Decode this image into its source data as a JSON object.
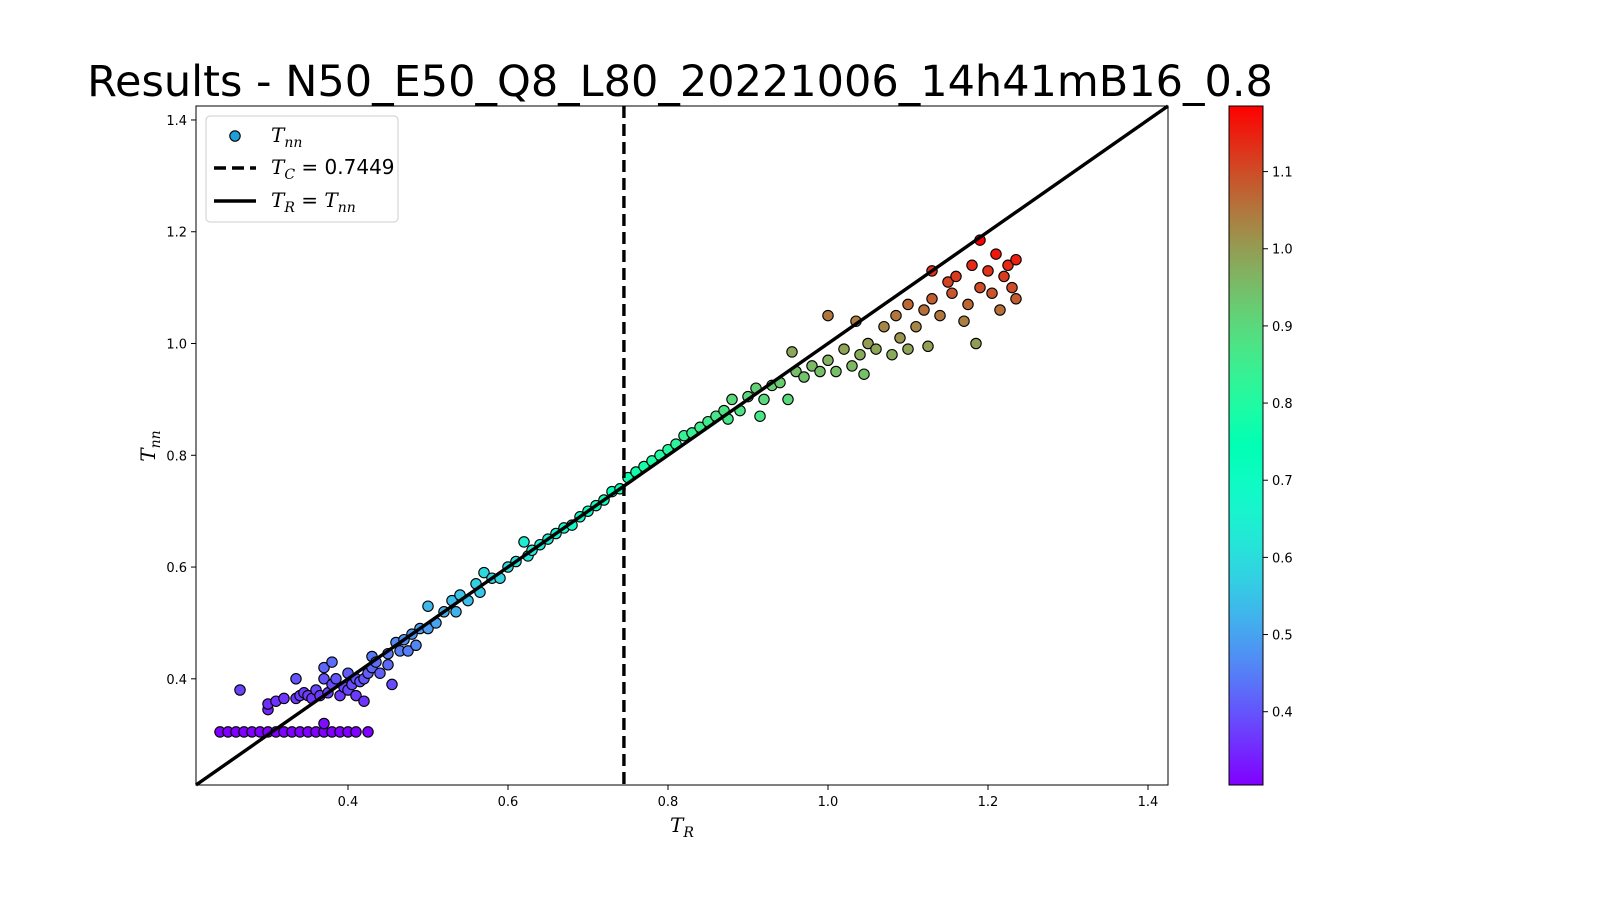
{
  "chart_data": {
    "type": "scatter",
    "title": "Results - N50_E50_Q8_L80_20221006_14h41mB16_0.8",
    "xlabel": {
      "main": "T",
      "sub": "R"
    },
    "ylabel": {
      "main": "T",
      "sub": "nn"
    },
    "xlim": [
      0.21,
      1.425
    ],
    "ylim": [
      0.21,
      1.425
    ],
    "xticks": [
      0.4,
      0.6,
      0.8,
      1.0,
      1.2,
      1.4
    ],
    "xtick_labels": [
      "0.4",
      "0.6",
      "0.8",
      "1.0",
      "1.2",
      "1.4"
    ],
    "yticks": [
      0.4,
      0.6,
      0.8,
      1.0,
      1.2,
      1.4
    ],
    "ytick_labels": [
      "0.4",
      "0.6",
      "0.8",
      "1.0",
      "1.2",
      "1.4"
    ],
    "grid": false,
    "legend": {
      "placement": "upper-left",
      "entries": [
        {
          "kind": "marker",
          "main": "T",
          "sub": "nn",
          "color": "#1f9ed8"
        },
        {
          "kind": "dashed",
          "main": "T",
          "sub": "C",
          "rest": " = 0.7449"
        },
        {
          "kind": "solid",
          "main": "T",
          "sub": "R",
          "mid": " = ",
          "main2": "T",
          "sub2": "nn"
        }
      ]
    },
    "vline": {
      "x": 0.7449,
      "style": "dashed",
      "color": "#000000"
    },
    "diagonal": {
      "label": "T_R = T_nn",
      "color": "#000000"
    },
    "colorbar": {
      "cmap": "rainbow",
      "range": [
        0.305,
        1.185
      ],
      "ticks": [
        0.4,
        0.5,
        0.6,
        0.7,
        0.8,
        0.9,
        1.0,
        1.1
      ],
      "tick_labels": [
        "0.4",
        "0.5",
        "0.6",
        "0.7",
        "0.8",
        "0.9",
        "1.0",
        "1.1"
      ]
    },
    "series": [
      {
        "points": [
          [
            0.24,
            0.305
          ],
          [
            0.25,
            0.305
          ],
          [
            0.26,
            0.305
          ],
          [
            0.27,
            0.305
          ],
          [
            0.28,
            0.305
          ],
          [
            0.29,
            0.305
          ],
          [
            0.3,
            0.305
          ],
          [
            0.31,
            0.305
          ],
          [
            0.32,
            0.305
          ],
          [
            0.33,
            0.305
          ],
          [
            0.34,
            0.305
          ],
          [
            0.35,
            0.305
          ],
          [
            0.36,
            0.305
          ],
          [
            0.37,
            0.305
          ],
          [
            0.38,
            0.305
          ],
          [
            0.39,
            0.305
          ],
          [
            0.4,
            0.305
          ],
          [
            0.41,
            0.305
          ],
          [
            0.425,
            0.305
          ],
          [
            0.265,
            0.38
          ],
          [
            0.3,
            0.345
          ],
          [
            0.3,
            0.355
          ],
          [
            0.31,
            0.36
          ],
          [
            0.32,
            0.365
          ],
          [
            0.335,
            0.4
          ],
          [
            0.335,
            0.365
          ],
          [
            0.34,
            0.37
          ],
          [
            0.345,
            0.375
          ],
          [
            0.35,
            0.37
          ],
          [
            0.355,
            0.365
          ],
          [
            0.36,
            0.38
          ],
          [
            0.365,
            0.37
          ],
          [
            0.37,
            0.32
          ],
          [
            0.37,
            0.4
          ],
          [
            0.37,
            0.42
          ],
          [
            0.375,
            0.375
          ],
          [
            0.38,
            0.43
          ],
          [
            0.38,
            0.39
          ],
          [
            0.385,
            0.4
          ],
          [
            0.39,
            0.37
          ],
          [
            0.395,
            0.385
          ],
          [
            0.4,
            0.38
          ],
          [
            0.4,
            0.41
          ],
          [
            0.405,
            0.39
          ],
          [
            0.41,
            0.4
          ],
          [
            0.41,
            0.37
          ],
          [
            0.415,
            0.395
          ],
          [
            0.42,
            0.36
          ],
          [
            0.42,
            0.4
          ],
          [
            0.425,
            0.41
          ],
          [
            0.43,
            0.42
          ],
          [
            0.43,
            0.44
          ],
          [
            0.435,
            0.43
          ],
          [
            0.44,
            0.41
          ],
          [
            0.45,
            0.445
          ],
          [
            0.45,
            0.425
          ],
          [
            0.455,
            0.39
          ],
          [
            0.46,
            0.465
          ],
          [
            0.465,
            0.45
          ],
          [
            0.47,
            0.47
          ],
          [
            0.475,
            0.45
          ],
          [
            0.48,
            0.48
          ],
          [
            0.485,
            0.46
          ],
          [
            0.49,
            0.49
          ],
          [
            0.5,
            0.53
          ],
          [
            0.5,
            0.49
          ],
          [
            0.51,
            0.5
          ],
          [
            0.52,
            0.52
          ],
          [
            0.53,
            0.54
          ],
          [
            0.535,
            0.52
          ],
          [
            0.54,
            0.55
          ],
          [
            0.55,
            0.54
          ],
          [
            0.56,
            0.57
          ],
          [
            0.565,
            0.555
          ],
          [
            0.57,
            0.59
          ],
          [
            0.58,
            0.58
          ],
          [
            0.59,
            0.58
          ],
          [
            0.6,
            0.6
          ],
          [
            0.61,
            0.61
          ],
          [
            0.62,
            0.645
          ],
          [
            0.625,
            0.62
          ],
          [
            0.63,
            0.63
          ],
          [
            0.64,
            0.64
          ],
          [
            0.65,
            0.65
          ],
          [
            0.66,
            0.66
          ],
          [
            0.67,
            0.67
          ],
          [
            0.68,
            0.675
          ],
          [
            0.69,
            0.69
          ],
          [
            0.7,
            0.7
          ],
          [
            0.71,
            0.71
          ],
          [
            0.72,
            0.72
          ],
          [
            0.73,
            0.735
          ],
          [
            0.74,
            0.74
          ],
          [
            0.75,
            0.76
          ],
          [
            0.76,
            0.77
          ],
          [
            0.77,
            0.78
          ],
          [
            0.78,
            0.79
          ],
          [
            0.79,
            0.8
          ],
          [
            0.8,
            0.81
          ],
          [
            0.81,
            0.82
          ],
          [
            0.82,
            0.835
          ],
          [
            0.83,
            0.84
          ],
          [
            0.84,
            0.85
          ],
          [
            0.85,
            0.86
          ],
          [
            0.86,
            0.87
          ],
          [
            0.87,
            0.88
          ],
          [
            0.875,
            0.865
          ],
          [
            0.88,
            0.9
          ],
          [
            0.89,
            0.88
          ],
          [
            0.9,
            0.905
          ],
          [
            0.91,
            0.92
          ],
          [
            0.915,
            0.87
          ],
          [
            0.92,
            0.9
          ],
          [
            0.93,
            0.925
          ],
          [
            0.94,
            0.93
          ],
          [
            0.95,
            0.9
          ],
          [
            0.955,
            0.985
          ],
          [
            0.96,
            0.95
          ],
          [
            0.97,
            0.94
          ],
          [
            0.98,
            0.96
          ],
          [
            0.99,
            0.95
          ],
          [
            1.0,
            1.05
          ],
          [
            1.0,
            0.97
          ],
          [
            1.01,
            0.95
          ],
          [
            1.02,
            0.99
          ],
          [
            1.03,
            0.96
          ],
          [
            1.035,
            1.04
          ],
          [
            1.04,
            0.98
          ],
          [
            1.045,
            0.945
          ],
          [
            1.05,
            1.0
          ],
          [
            1.06,
            0.99
          ],
          [
            1.07,
            1.03
          ],
          [
            1.08,
            0.98
          ],
          [
            1.085,
            1.05
          ],
          [
            1.09,
            1.01
          ],
          [
            1.1,
            1.07
          ],
          [
            1.1,
            0.99
          ],
          [
            1.11,
            1.03
          ],
          [
            1.12,
            1.06
          ],
          [
            1.125,
            0.995
          ],
          [
            1.13,
            1.13
          ],
          [
            1.13,
            1.08
          ],
          [
            1.14,
            1.05
          ],
          [
            1.15,
            1.11
          ],
          [
            1.155,
            1.09
          ],
          [
            1.16,
            1.12
          ],
          [
            1.17,
            1.04
          ],
          [
            1.175,
            1.07
          ],
          [
            1.18,
            1.14
          ],
          [
            1.185,
            1.0
          ],
          [
            1.19,
            1.1
          ],
          [
            1.19,
            1.185
          ],
          [
            1.2,
            1.13
          ],
          [
            1.205,
            1.09
          ],
          [
            1.21,
            1.16
          ],
          [
            1.215,
            1.06
          ],
          [
            1.22,
            1.12
          ],
          [
            1.225,
            1.14
          ],
          [
            1.23,
            1.1
          ],
          [
            1.235,
            1.15
          ],
          [
            1.235,
            1.08
          ]
        ]
      }
    ]
  }
}
